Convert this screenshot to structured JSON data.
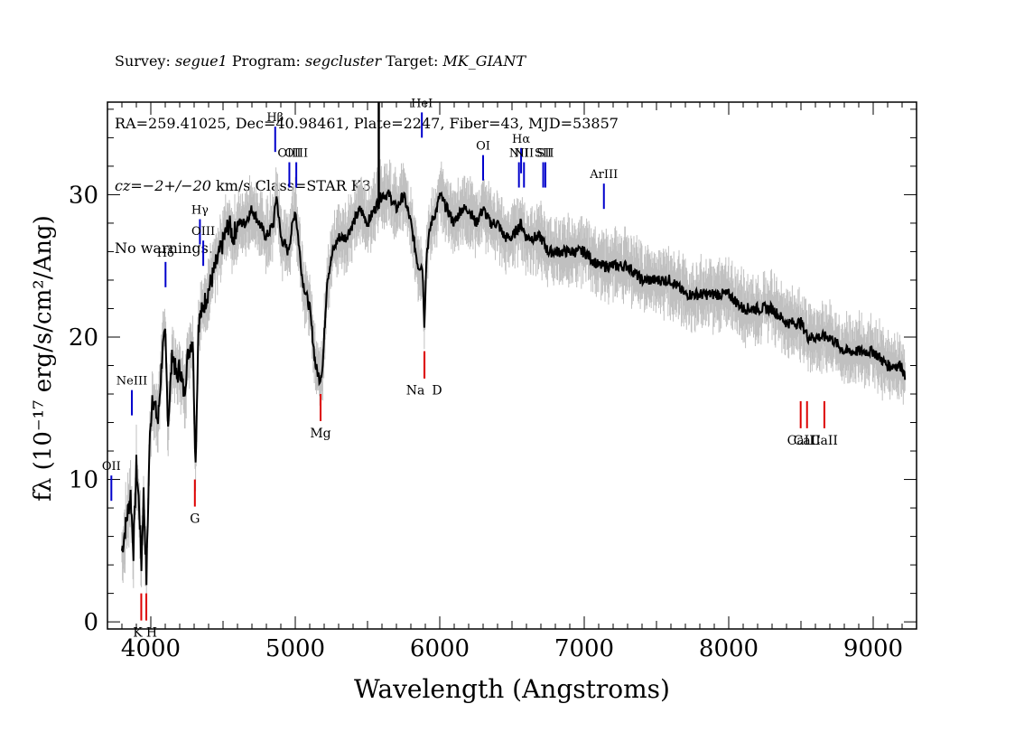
{
  "header": {
    "l1_a": "Survey: ",
    "l1_survey": "segue1",
    "l1_b": " Program: ",
    "l1_program": "segcluster",
    "l1_c": " Target: ",
    "l1_target": "MK_GIANT",
    "l2": "RA=259.41025, Dec=40.98461, Plate=2247, Fiber=43, MJD=53857",
    "l3_a": "cz",
    "l3_b": "=",
    "l3_c": "−2+/−20",
    "l3_d": " km/s Class=STAR K3",
    "l4": "No warnings."
  },
  "chart_data": {
    "type": "line",
    "xlabel": "Wavelength (Angstroms)",
    "ylabel": "fλ (10⁻¹⁷ erg/s/cm²/Ang)",
    "xlim": [
      3700,
      9300
    ],
    "ylim": [
      -0.5,
      36.5
    ],
    "x_ticks": [
      4000,
      5000,
      6000,
      7000,
      8000,
      9000
    ],
    "y_ticks": [
      0,
      10,
      20,
      30
    ],
    "grid": false,
    "colors": {
      "spectrum": "#000000",
      "error": "#c0c0c0",
      "emission": "#0000cc",
      "absorption": "#dd0000"
    },
    "series": [
      {
        "values_note": "",
        "x": [
          3800,
          3830,
          3860,
          3880,
          3900,
          3920,
          3935,
          3950,
          3970,
          3990,
          4010,
          4030,
          4050,
          4080,
          4100,
          4120,
          4150,
          4180,
          4200,
          4230,
          4260,
          4290,
          4310,
          4330,
          4360,
          4390,
          4420,
          4450,
          4480,
          4510,
          4540,
          4570,
          4600,
          4650,
          4700,
          4750,
          4800,
          4850,
          4870,
          4900,
          4950,
          5000,
          5050,
          5100,
          5140,
          5170,
          5190,
          5220,
          5260,
          5300,
          5350,
          5400,
          5450,
          5500,
          5550,
          5600,
          5650,
          5700,
          5750,
          5800,
          5850,
          5880,
          5893,
          5910,
          5940,
          5980,
          6000,
          6050,
          6100,
          6150,
          6200,
          6250,
          6300,
          6350,
          6400,
          6450,
          6500,
          6563,
          6600,
          6650,
          6700,
          6750,
          6800,
          6850,
          6900,
          7000,
          7100,
          7200,
          7300,
          7400,
          7500,
          7600,
          7700,
          7800,
          7900,
          8000,
          8100,
          8200,
          8300,
          8400,
          8500,
          8550,
          8600,
          8700,
          8800,
          8900,
          9000,
          9100,
          9200,
          9220
        ],
        "values": [
          5,
          7,
          9,
          5,
          11,
          8,
          4,
          9,
          3,
          12,
          16,
          15,
          14,
          19,
          20,
          14,
          19,
          17,
          18,
          16,
          19,
          20,
          11,
          21,
          22,
          23,
          24,
          25,
          26,
          27,
          28,
          27,
          28,
          28,
          29,
          28,
          27,
          28,
          30,
          27,
          26,
          29,
          24,
          22,
          18,
          17,
          18,
          24,
          26,
          27,
          27,
          28,
          29,
          28,
          29,
          30,
          30,
          29,
          30,
          28,
          25,
          25,
          21,
          26,
          28,
          29,
          30,
          29,
          28,
          29,
          29,
          28,
          29,
          28,
          28,
          27,
          27,
          28,
          27,
          27,
          27,
          26,
          26,
          26,
          26,
          26,
          25,
          25,
          25,
          24,
          24,
          24,
          23,
          23,
          23,
          23,
          22,
          22,
          22,
          21,
          21,
          20,
          20,
          20,
          19,
          19,
          19,
          18,
          18,
          17
        ]
      }
    ],
    "error_band": 1.8,
    "spike": {
      "x": 5578,
      "top": 36.5,
      "bottom": 29
    },
    "emission_lines": [
      {
        "label": "OII",
        "x": 3727,
        "y": 8.5
      },
      {
        "label": "NeIII",
        "x": 3869,
        "y": 14.5
      },
      {
        "label": "Hδ",
        "x": 4102,
        "y": 23.5
      },
      {
        "label": "Hγ",
        "x": 4340,
        "y": 26.5
      },
      {
        "label": "OIII",
        "x": 4363,
        "y": 25
      },
      {
        "label": "Hβ",
        "x": 4861,
        "y": 33
      },
      {
        "label": "OIII",
        "x": 4959,
        "y": 30.5
      },
      {
        "label": "OIII",
        "x": 5007,
        "y": 30.5
      },
      {
        "label": "HeI",
        "x": 5876,
        "y": 34
      },
      {
        "label": "OI",
        "x": 6300,
        "y": 31
      },
      {
        "label": "NII",
        "x": 6548,
        "y": 30.5
      },
      {
        "label": "Hα",
        "x": 6563,
        "y": 31.5
      },
      {
        "label": "NII",
        "x": 6583,
        "y": 30.5
      },
      {
        "label": "SII",
        "x": 6716,
        "y": 30.5
      },
      {
        "label": "SII",
        "x": 6731,
        "y": 30.5
      },
      {
        "label": "ArIII",
        "x": 7136,
        "y": 29
      }
    ],
    "absorption_lines": [
      {
        "label": "K",
        "x": 3934,
        "y": 2
      },
      {
        "label": "H",
        "x": 3969,
        "y": 2
      },
      {
        "label": "G",
        "x": 4305,
        "y": 10
      },
      {
        "label": "Mg",
        "x": 5175,
        "y": 16
      },
      {
        "label": "Na",
        "x": 5894,
        "y": 19
      },
      {
        "label": "D",
        "x": 5894,
        "y": 19
      },
      {
        "label": "CaII",
        "x": 8498,
        "y": 15.5
      },
      {
        "label": "CaII",
        "x": 8542,
        "y": 15.5
      },
      {
        "label": "CaII",
        "x": 8662,
        "y": 15.5
      }
    ]
  }
}
